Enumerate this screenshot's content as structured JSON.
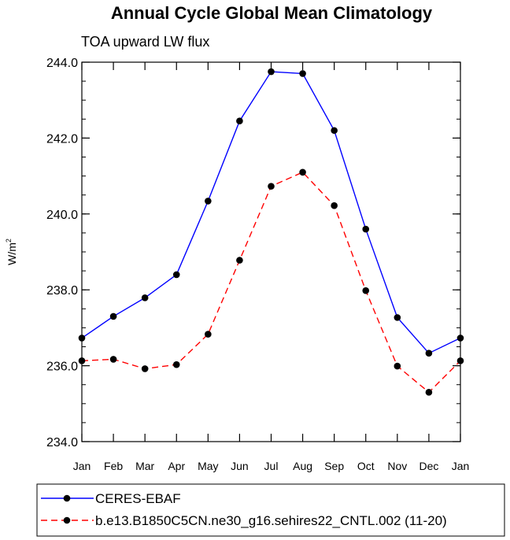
{
  "chart_data": {
    "type": "line",
    "title": "Annual Cycle Global Mean Climatology",
    "subtitle": "TOA upward LW flux",
    "xlabel": "",
    "ylabel": "W/m",
    "ylabel_superscript": "2",
    "categories": [
      "Jan",
      "Feb",
      "Mar",
      "Apr",
      "May",
      "Jun",
      "Jul",
      "Aug",
      "Sep",
      "Oct",
      "Nov",
      "Dec",
      "Jan"
    ],
    "ylim": [
      234.0,
      244.0
    ],
    "y_ticks": [
      "234.0",
      "236.0",
      "238.0",
      "240.0",
      "242.0",
      "244.0"
    ],
    "y_tick_values": [
      234.0,
      236.0,
      238.0,
      240.0,
      242.0,
      244.0
    ],
    "y_minor_step": 0.5,
    "grid": false,
    "legend_position": "bottom",
    "series": [
      {
        "name": "CERES-EBAF",
        "color": "#0000ff",
        "dash": "solid",
        "values": [
          236.73,
          237.3,
          237.79,
          238.4,
          240.34,
          242.45,
          243.75,
          243.7,
          242.2,
          239.6,
          237.27,
          236.33,
          236.73
        ]
      },
      {
        "name": "b.e13.B1850C5CN.ne30_g16.sehires22_CNTL.002 (11-20)",
        "color": "#ff0000",
        "dash": "dashed",
        "values": [
          236.13,
          236.17,
          235.92,
          236.03,
          236.83,
          238.78,
          240.73,
          241.1,
          240.22,
          237.98,
          235.99,
          235.3,
          236.13
        ]
      }
    ]
  }
}
